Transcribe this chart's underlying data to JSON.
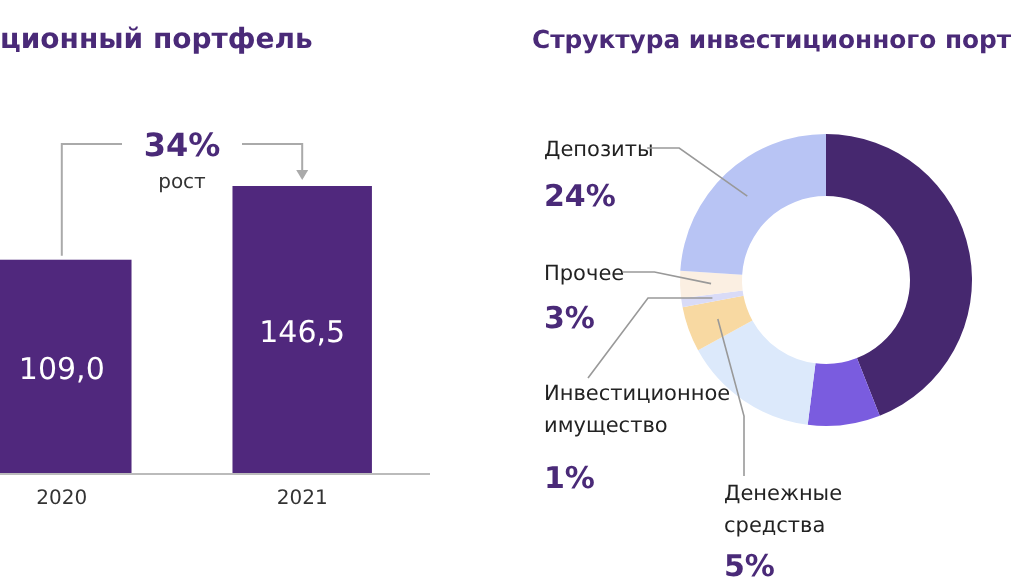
{
  "chart_data": [
    {
      "type": "bar",
      "title": "ционный портфель",
      "categories": [
        "2020",
        "2021"
      ],
      "values": [
        109.0,
        146.5
      ],
      "value_labels": [
        "109,0",
        "146,5"
      ],
      "color": "#50287d",
      "annotations": [
        "34%",
        "рост"
      ]
    },
    {
      "type": "donut",
      "title": "Структура инвестиционного порт",
      "categories": [
        null,
        null,
        null,
        "Денежные средства",
        "Инвестиционное имущество",
        "Прочее",
        "Депозиты"
      ],
      "values": [
        44,
        8,
        15,
        5,
        1,
        3,
        24
      ],
      "value_labels": [
        null,
        null,
        null,
        "5%",
        "1%",
        "3%",
        "24%"
      ],
      "colors": [
        "#46286f",
        "#7a5cdf",
        "#dce9fb",
        "#f8d9a2",
        "#d9dbf7",
        "#fbefe2",
        "#b8c4f4"
      ]
    }
  ]
}
